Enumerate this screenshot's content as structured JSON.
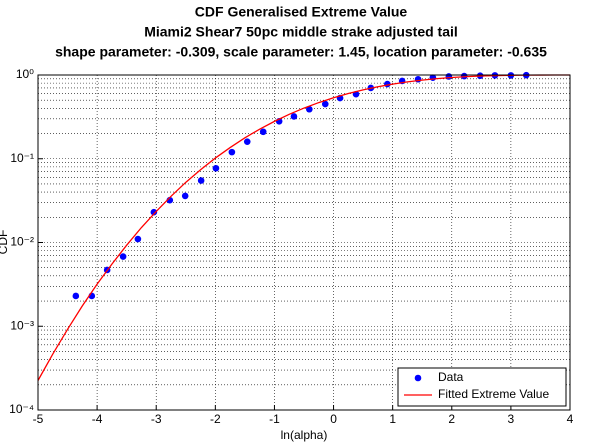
{
  "chart_data": {
    "type": "line",
    "title": "CDF Generalised Extreme Value",
    "subtitle": "Miami2 Shear7 50pc middle strake adjusted tail",
    "subtitle2": "shape parameter: -0.309, scale parameter: 1.45, location parameter: -0.635",
    "x_label": "ln(alpha)",
    "y_label": "CDF",
    "xlim": [
      -5,
      4
    ],
    "xticks": [
      -5,
      -4,
      -3,
      -2,
      -1,
      0,
      1,
      2,
      3,
      4
    ],
    "ylim": [
      0.0001,
      1
    ],
    "yticks": [
      {
        "value": 0.0001,
        "label": "10⁻⁴"
      },
      {
        "value": 0.001,
        "label": "10⁻³"
      },
      {
        "value": 0.01,
        "label": "10⁻²"
      },
      {
        "value": 0.1,
        "label": "10⁻¹"
      },
      {
        "value": 1,
        "label": "10⁰"
      }
    ],
    "y_log": true,
    "grid": true,
    "minor_grid": true,
    "legend": "southeast",
    "series": [
      {
        "name": "Data",
        "type": "scatter",
        "color": "#0000ff",
        "x": [
          -4.36,
          -4.09,
          -3.83,
          -3.56,
          -3.31,
          -3.04,
          -2.77,
          -2.51,
          -2.24,
          -1.99,
          -1.72,
          -1.46,
          -1.19,
          -0.92,
          -0.67,
          -0.41,
          -0.14,
          0.11,
          0.38,
          0.63,
          0.91,
          1.16,
          1.43,
          1.68,
          1.95,
          2.21,
          2.48,
          2.73,
          3.0,
          3.26
        ],
        "values": [
          0.0023,
          0.0023,
          0.0047,
          0.0068,
          0.011,
          0.023,
          0.032,
          0.036,
          0.055,
          0.077,
          0.12,
          0.16,
          0.21,
          0.28,
          0.32,
          0.39,
          0.45,
          0.53,
          0.59,
          0.7,
          0.78,
          0.85,
          0.89,
          0.93,
          0.96,
          0.97,
          0.98,
          0.99,
          0.99,
          0.995
        ]
      },
      {
        "name": "Fitted Extreme Value",
        "type": "line",
        "color": "#ff0000",
        "x": [
          -5,
          -4.75,
          -4.5,
          -4.25,
          -4,
          -3.75,
          -3.5,
          -3.25,
          -3,
          -2.75,
          -2.5,
          -2.25,
          -2,
          -1.75,
          -1.5,
          -1.25,
          -1,
          -0.75,
          -0.5,
          -0.25,
          0,
          0.25,
          0.5,
          0.75,
          1,
          1.25,
          1.5,
          1.75,
          2,
          2.25,
          2.5,
          2.75,
          3,
          3.25,
          3.5,
          3.75,
          4
        ],
        "values": [
          0.000225,
          0.000466,
          0.00092,
          0.00175,
          0.00318,
          0.00552,
          0.00928,
          0.0151,
          0.0235,
          0.0356,
          0.0523,
          0.074,
          0.1019,
          0.1361,
          0.1778,
          0.2256,
          0.2794,
          0.3392,
          0.4027,
          0.4686,
          0.5354,
          0.6013,
          0.6649,
          0.7245,
          0.7787,
          0.8272,
          0.8691,
          0.9043,
          0.933,
          0.9554,
          0.9722,
          0.9841,
          0.992,
          0.9966,
          0.999,
          0.9999,
          1
        ]
      }
    ]
  }
}
